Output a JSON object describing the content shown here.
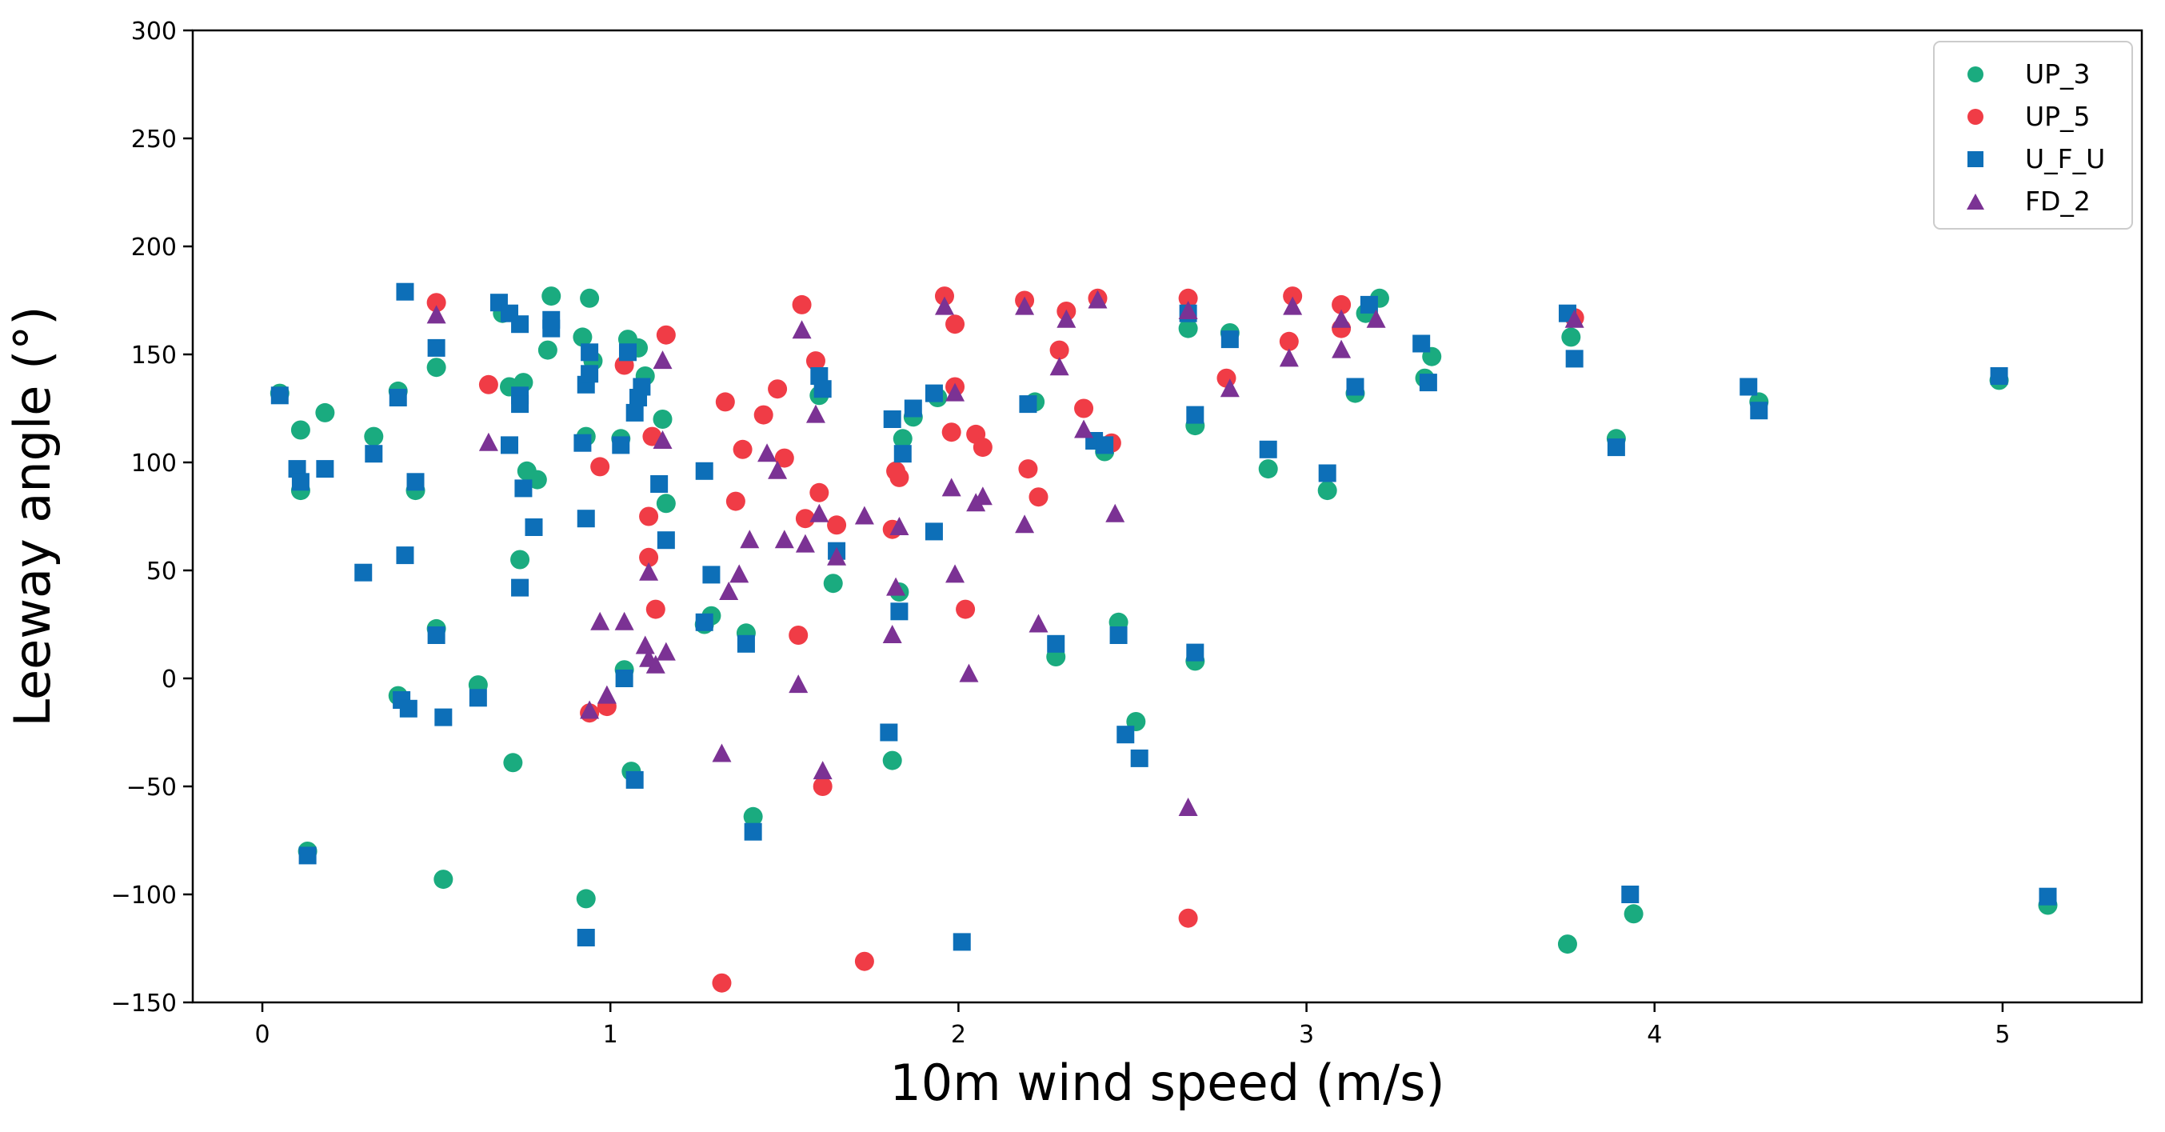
{
  "chart_data": {
    "type": "scatter",
    "title": "",
    "xlabel": "10m wind speed (m/s)",
    "ylabel": "Leeway angle (°)",
    "xlim": [
      -0.2,
      5.4
    ],
    "ylim": [
      -150,
      300
    ],
    "xticks": [
      0,
      1,
      2,
      3,
      4,
      5
    ],
    "yticks": [
      -150,
      -100,
      -50,
      0,
      50,
      100,
      150,
      200,
      250,
      300
    ],
    "grid": false,
    "legend_position": "top-right",
    "series": [
      {
        "name": "UP_3",
        "color": "#1aab7f",
        "marker": "circle",
        "points": [
          [
            0.05,
            132
          ],
          [
            0.11,
            115
          ],
          [
            0.11,
            87
          ],
          [
            0.13,
            -80
          ],
          [
            0.18,
            123
          ],
          [
            0.32,
            112
          ],
          [
            0.39,
            133
          ],
          [
            0.39,
            -8
          ],
          [
            0.44,
            87
          ],
          [
            0.5,
            23
          ],
          [
            0.5,
            144
          ],
          [
            0.52,
            -93
          ],
          [
            0.62,
            -3
          ],
          [
            0.69,
            169
          ],
          [
            0.71,
            135
          ],
          [
            0.72,
            -39
          ],
          [
            0.74,
            55
          ],
          [
            0.75,
            137
          ],
          [
            0.76,
            96
          ],
          [
            0.79,
            92
          ],
          [
            0.82,
            152
          ],
          [
            0.83,
            177
          ],
          [
            0.92,
            158
          ],
          [
            0.93,
            112
          ],
          [
            0.93,
            -102
          ],
          [
            0.94,
            176
          ],
          [
            0.95,
            147
          ],
          [
            1.03,
            111
          ],
          [
            1.04,
            4
          ],
          [
            1.05,
            157
          ],
          [
            1.06,
            -43
          ],
          [
            1.08,
            153
          ],
          [
            1.1,
            140
          ],
          [
            1.15,
            120
          ],
          [
            1.16,
            81
          ],
          [
            1.27,
            25
          ],
          [
            1.29,
            29
          ],
          [
            1.39,
            21
          ],
          [
            1.41,
            -64
          ],
          [
            1.6,
            131
          ],
          [
            1.64,
            44
          ],
          [
            1.81,
            -38
          ],
          [
            1.83,
            40
          ],
          [
            1.84,
            111
          ],
          [
            1.87,
            121
          ],
          [
            1.94,
            130
          ],
          [
            2.22,
            128
          ],
          [
            2.28,
            10
          ],
          [
            2.42,
            105
          ],
          [
            2.46,
            26
          ],
          [
            2.51,
            -20
          ],
          [
            2.66,
            162
          ],
          [
            2.68,
            8
          ],
          [
            2.68,
            117
          ],
          [
            2.78,
            160
          ],
          [
            2.89,
            97
          ],
          [
            3.06,
            87
          ],
          [
            3.14,
            132
          ],
          [
            3.17,
            169
          ],
          [
            3.21,
            176
          ],
          [
            3.34,
            139
          ],
          [
            3.36,
            149
          ],
          [
            3.75,
            -123
          ],
          [
            3.76,
            158
          ],
          [
            3.89,
            111
          ],
          [
            3.94,
            -109
          ],
          [
            4.3,
            128
          ],
          [
            4.99,
            138
          ],
          [
            5.13,
            -105
          ]
        ]
      },
      {
        "name": "UP_5",
        "color": "#f03c46",
        "marker": "circle",
        "points": [
          [
            0.5,
            174
          ],
          [
            0.65,
            136
          ],
          [
            0.94,
            -16
          ],
          [
            0.97,
            98
          ],
          [
            0.99,
            -13
          ],
          [
            1.04,
            145
          ],
          [
            1.11,
            75
          ],
          [
            1.11,
            56
          ],
          [
            1.12,
            112
          ],
          [
            1.13,
            32
          ],
          [
            1.16,
            159
          ],
          [
            1.32,
            -141
          ],
          [
            1.33,
            128
          ],
          [
            1.36,
            82
          ],
          [
            1.38,
            106
          ],
          [
            1.44,
            122
          ],
          [
            1.48,
            134
          ],
          [
            1.5,
            102
          ],
          [
            1.54,
            20
          ],
          [
            1.55,
            173
          ],
          [
            1.56,
            74
          ],
          [
            1.59,
            147
          ],
          [
            1.6,
            86
          ],
          [
            1.61,
            -50
          ],
          [
            1.65,
            71
          ],
          [
            1.73,
            -131
          ],
          [
            1.81,
            69
          ],
          [
            1.82,
            96
          ],
          [
            1.83,
            93
          ],
          [
            1.96,
            177
          ],
          [
            1.98,
            114
          ],
          [
            1.99,
            164
          ],
          [
            1.99,
            135
          ],
          [
            2.02,
            32
          ],
          [
            2.05,
            113
          ],
          [
            2.07,
            107
          ],
          [
            2.19,
            175
          ],
          [
            2.2,
            97
          ],
          [
            2.23,
            84
          ],
          [
            2.29,
            152
          ],
          [
            2.31,
            170
          ],
          [
            2.36,
            125
          ],
          [
            2.4,
            176
          ],
          [
            2.44,
            109
          ],
          [
            2.66,
            -111
          ],
          [
            2.66,
            176
          ],
          [
            2.77,
            139
          ],
          [
            2.95,
            156
          ],
          [
            2.96,
            177
          ],
          [
            3.1,
            173
          ],
          [
            3.1,
            162
          ],
          [
            3.77,
            167
          ]
        ]
      },
      {
        "name": "U_F_U",
        "color": "#0d6fb8",
        "marker": "square",
        "points": [
          [
            0.05,
            131
          ],
          [
            0.1,
            97
          ],
          [
            0.11,
            91
          ],
          [
            0.13,
            -82
          ],
          [
            0.18,
            97
          ],
          [
            0.29,
            49
          ],
          [
            0.32,
            104
          ],
          [
            0.39,
            130
          ],
          [
            0.4,
            -10
          ],
          [
            0.41,
            179
          ],
          [
            0.41,
            57
          ],
          [
            0.42,
            -14
          ],
          [
            0.44,
            91
          ],
          [
            0.5,
            20
          ],
          [
            0.5,
            153
          ],
          [
            0.52,
            -18
          ],
          [
            0.62,
            -9
          ],
          [
            0.68,
            174
          ],
          [
            0.71,
            108
          ],
          [
            0.71,
            169
          ],
          [
            0.74,
            164
          ],
          [
            0.74,
            131
          ],
          [
            0.74,
            127
          ],
          [
            0.74,
            42
          ],
          [
            0.75,
            88
          ],
          [
            0.78,
            70
          ],
          [
            0.83,
            166
          ],
          [
            0.83,
            162
          ],
          [
            0.92,
            109
          ],
          [
            0.93,
            74
          ],
          [
            0.93,
            136
          ],
          [
            0.93,
            -120
          ],
          [
            0.94,
            151
          ],
          [
            0.94,
            141
          ],
          [
            1.03,
            108
          ],
          [
            1.04,
            0
          ],
          [
            1.05,
            151
          ],
          [
            1.07,
            -47
          ],
          [
            1.07,
            123
          ],
          [
            1.08,
            130
          ],
          [
            1.09,
            135
          ],
          [
            1.14,
            90
          ],
          [
            1.16,
            64
          ],
          [
            1.27,
            26
          ],
          [
            1.27,
            96
          ],
          [
            1.29,
            48
          ],
          [
            1.39,
            16
          ],
          [
            1.41,
            -71
          ],
          [
            1.6,
            140
          ],
          [
            1.61,
            134
          ],
          [
            1.65,
            59
          ],
          [
            1.8,
            -25
          ],
          [
            1.81,
            120
          ],
          [
            1.83,
            31
          ],
          [
            1.84,
            104
          ],
          [
            1.87,
            125
          ],
          [
            1.93,
            132
          ],
          [
            1.93,
            68
          ],
          [
            2.01,
            -122
          ],
          [
            2.2,
            127
          ],
          [
            2.28,
            16
          ],
          [
            2.39,
            110
          ],
          [
            2.42,
            108
          ],
          [
            2.46,
            20
          ],
          [
            2.48,
            -26
          ],
          [
            2.52,
            -37
          ],
          [
            2.66,
            169
          ],
          [
            2.68,
            12
          ],
          [
            2.68,
            122
          ],
          [
            2.78,
            157
          ],
          [
            2.89,
            106
          ],
          [
            3.06,
            95
          ],
          [
            3.14,
            135
          ],
          [
            3.18,
            173
          ],
          [
            3.33,
            155
          ],
          [
            3.35,
            137
          ],
          [
            3.75,
            169
          ],
          [
            3.77,
            148
          ],
          [
            3.89,
            107
          ],
          [
            3.93,
            -100
          ],
          [
            4.27,
            135
          ],
          [
            4.3,
            124
          ],
          [
            4.99,
            140
          ],
          [
            5.13,
            -101
          ]
        ]
      },
      {
        "name": "FD_2",
        "color": "#7b3294",
        "marker": "triangle",
        "points": [
          [
            0.5,
            168
          ],
          [
            0.65,
            109
          ],
          [
            0.94,
            -15
          ],
          [
            0.97,
            26
          ],
          [
            0.99,
            -8
          ],
          [
            1.04,
            26
          ],
          [
            1.1,
            15
          ],
          [
            1.11,
            9
          ],
          [
            1.11,
            49
          ],
          [
            1.13,
            6
          ],
          [
            1.15,
            147
          ],
          [
            1.15,
            110
          ],
          [
            1.16,
            12
          ],
          [
            1.32,
            -35
          ],
          [
            1.34,
            40
          ],
          [
            1.37,
            48
          ],
          [
            1.4,
            64
          ],
          [
            1.45,
            104
          ],
          [
            1.48,
            96
          ],
          [
            1.5,
            64
          ],
          [
            1.54,
            -3
          ],
          [
            1.55,
            161
          ],
          [
            1.56,
            62
          ],
          [
            1.59,
            122
          ],
          [
            1.6,
            76
          ],
          [
            1.61,
            -43
          ],
          [
            1.65,
            56
          ],
          [
            1.73,
            75
          ],
          [
            1.81,
            20
          ],
          [
            1.82,
            42
          ],
          [
            1.83,
            70
          ],
          [
            1.96,
            172
          ],
          [
            1.98,
            88
          ],
          [
            1.99,
            48
          ],
          [
            1.99,
            132
          ],
          [
            2.03,
            2
          ],
          [
            2.05,
            81
          ],
          [
            2.07,
            84
          ],
          [
            2.19,
            172
          ],
          [
            2.19,
            71
          ],
          [
            2.23,
            25
          ],
          [
            2.29,
            144
          ],
          [
            2.31,
            166
          ],
          [
            2.36,
            115
          ],
          [
            2.4,
            175
          ],
          [
            2.45,
            76
          ],
          [
            2.66,
            -60
          ],
          [
            2.66,
            170
          ],
          [
            2.78,
            134
          ],
          [
            2.95,
            148
          ],
          [
            2.96,
            172
          ],
          [
            3.1,
            152
          ],
          [
            3.1,
            166
          ],
          [
            3.2,
            166
          ],
          [
            3.77,
            166
          ]
        ]
      }
    ]
  }
}
